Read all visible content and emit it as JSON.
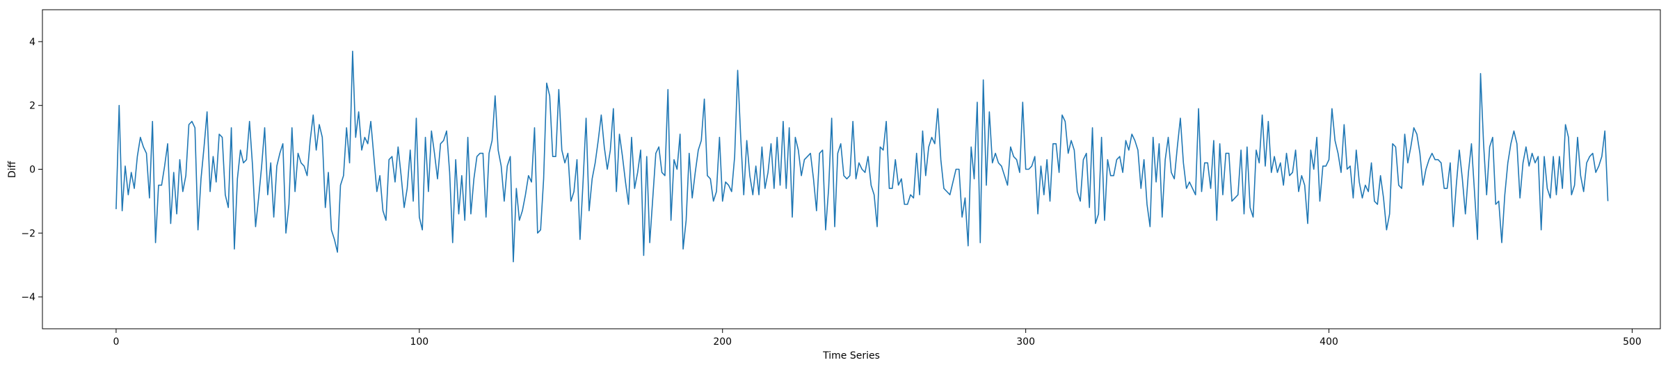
{
  "chart_data": {
    "type": "line",
    "title": "",
    "xlabel": "Time Series",
    "ylabel": "Diff",
    "xlim": [
      -24.3,
      509.3
    ],
    "ylim": [
      -5,
      5
    ],
    "xticks": [
      0,
      100,
      200,
      300,
      400,
      500
    ],
    "yticks": [
      -4,
      -2,
      0,
      2,
      4
    ],
    "grid": false,
    "legend": "none",
    "color": "#1f77b4",
    "series": [
      {
        "x_start": 0,
        "x_step": 1,
        "values": [
          -1.25,
          2.0,
          -1.3,
          0.1,
          -0.8,
          -0.1,
          -0.6,
          0.4,
          1.0,
          0.7,
          0.5,
          -0.9,
          1.5,
          -2.3,
          -0.5,
          -0.5,
          0.1,
          0.8,
          -1.7,
          -0.1,
          -1.4,
          0.3,
          -0.7,
          -0.2,
          1.4,
          1.5,
          1.3,
          -1.9,
          -0.3,
          0.7,
          1.8,
          -0.7,
          0.4,
          -0.4,
          1.1,
          1.0,
          -0.8,
          -1.2,
          1.3,
          -2.5,
          -0.3,
          0.6,
          0.2,
          0.3,
          1.5,
          0.1,
          -1.8,
          -0.9,
          0.1,
          1.3,
          -0.8,
          0.2,
          -1.5,
          0.1,
          0.5,
          0.8,
          -2.0,
          -1.1,
          1.3,
          -0.7,
          0.5,
          0.2,
          0.1,
          -0.2,
          0.9,
          1.7,
          0.6,
          1.4,
          1.0,
          -1.2,
          -0.1,
          -1.9,
          -2.2,
          -2.6,
          -0.5,
          -0.2,
          1.3,
          0.2,
          3.7,
          1.0,
          1.8,
          0.6,
          1.0,
          0.8,
          1.5,
          0.4,
          -0.7,
          -0.2,
          -1.3,
          -1.6,
          0.3,
          0.4,
          -0.4,
          0.7,
          -0.2,
          -1.2,
          -0.6,
          0.6,
          -1.0,
          1.6,
          -1.5,
          -1.9,
          1.0,
          -0.7,
          1.2,
          0.5,
          -0.3,
          0.8,
          0.9,
          1.2,
          -0.1,
          -2.3,
          0.3,
          -1.4,
          -0.2,
          -1.6,
          1.0,
          -1.4,
          -0.3,
          0.4,
          0.5,
          0.5,
          -1.5,
          0.5,
          0.9,
          2.3,
          0.6,
          0.1,
          -1.0,
          0.1,
          0.4,
          -2.9,
          -0.6,
          -1.6,
          -1.3,
          -0.8,
          -0.2,
          -0.4,
          1.3,
          -2.0,
          -1.9,
          -0.3,
          2.7,
          2.3,
          0.4,
          0.4,
          2.5,
          0.6,
          0.2,
          0.5,
          -1.0,
          -0.7,
          0.3,
          -2.2,
          -0.4,
          1.6,
          -1.3,
          -0.3,
          0.2,
          0.9,
          1.7,
          0.7,
          0.0,
          0.6,
          1.9,
          -0.7,
          1.1,
          0.4,
          -0.4,
          -1.1,
          1.0,
          -0.6,
          -0.1,
          0.6,
          -2.7,
          0.4,
          -2.3,
          -0.9,
          0.5,
          0.7,
          -0.1,
          -0.2,
          2.5,
          -1.6,
          0.3,
          0.0,
          1.1,
          -2.5,
          -1.6,
          0.5,
          -0.9,
          -0.1,
          0.6,
          0.9,
          2.2,
          -0.2,
          -0.3,
          -1.0,
          -0.7,
          1.0,
          -1.0,
          -0.4,
          -0.5,
          -0.7,
          0.4,
          3.1,
          1.0,
          -0.8,
          0.9,
          -0.2,
          -0.8,
          0.1,
          -0.8,
          0.7,
          -0.6,
          -0.1,
          0.8,
          -0.6,
          1.0,
          -0.5,
          1.5,
          -0.6,
          1.3,
          -1.5,
          1.0,
          0.6,
          -0.2,
          0.3,
          0.4,
          0.5,
          -0.3,
          -1.3,
          0.5,
          0.6,
          -1.9,
          -0.6,
          1.6,
          -1.8,
          0.5,
          0.8,
          -0.2,
          -0.3,
          -0.2,
          1.5,
          -0.3,
          0.2,
          0.0,
          -0.1,
          0.4,
          -0.5,
          -0.8,
          -1.8,
          0.7,
          0.6,
          1.5,
          -0.6,
          -0.6,
          0.3,
          -0.5,
          -0.3,
          -1.1,
          -1.1,
          -0.8,
          -0.9,
          0.5,
          -0.8,
          1.2,
          -0.2,
          0.7,
          1.0,
          0.8,
          1.9,
          0.3,
          -0.6,
          -0.7,
          -0.8,
          -0.4,
          0.0,
          0.0,
          -1.5,
          -0.9,
          -2.4,
          0.7,
          -0.3,
          2.1,
          -2.3,
          2.8,
          -0.5,
          1.8,
          0.2,
          0.5,
          0.2,
          0.1,
          -0.2,
          -0.5,
          0.7,
          0.4,
          0.3,
          -0.1,
          2.1,
          0.0,
          0.0,
          0.1,
          0.4,
          -1.4,
          0.1,
          -0.8,
          0.3,
          -1.0,
          0.8,
          0.8,
          -0.1,
          1.7,
          1.5,
          0.5,
          0.9,
          0.6,
          -0.7,
          -1.0,
          0.3,
          0.5,
          -1.2,
          1.3,
          -1.7,
          -1.4,
          1.0,
          -1.6,
          0.3,
          -0.2,
          -0.2,
          0.3,
          0.4,
          -0.1,
          0.9,
          0.6,
          1.1,
          0.9,
          0.6,
          -0.6,
          0.3,
          -1.1,
          -1.8,
          1.0,
          -0.4,
          0.8,
          -1.5,
          0.3,
          1.0,
          -0.1,
          -0.3,
          0.7,
          1.6,
          0.2,
          -0.6,
          -0.4,
          -0.6,
          -0.8,
          1.9,
          -0.7,
          0.2,
          0.2,
          -0.6,
          0.9,
          -1.6,
          0.8,
          -0.8,
          0.5,
          0.5,
          -1.0,
          -0.9,
          -0.8,
          0.6,
          -1.4,
          0.7,
          -1.2,
          -1.5,
          0.6,
          0.2,
          1.7,
          0.1,
          1.5,
          -0.1,
          0.4,
          -0.1,
          0.2,
          -0.5,
          0.5,
          -0.2,
          -0.1,
          0.6,
          -0.7,
          -0.2,
          -0.5,
          -1.7,
          0.6,
          0.0,
          1.0,
          -1.0,
          0.1,
          0.1,
          0.3,
          1.9,
          0.9,
          0.5,
          -0.1,
          1.4,
          0.0,
          0.1,
          -0.9,
          0.6,
          -0.4,
          -0.9,
          -0.5,
          -0.7,
          0.2,
          -1.0,
          -1.1,
          -0.2,
          -0.9,
          -1.9,
          -1.4,
          0.8,
          0.7,
          -0.5,
          -0.6,
          1.1,
          0.2,
          0.7,
          1.3,
          1.1,
          0.5,
          -0.5,
          0.0,
          0.3,
          0.5,
          0.3,
          0.3,
          0.2,
          -0.6,
          -0.6,
          0.2,
          -1.8,
          -0.5,
          0.6,
          -0.3,
          -1.4,
          -0.1,
          0.8,
          -0.7,
          -2.2,
          3.0,
          0.8,
          -0.8,
          0.7,
          1.0,
          -1.1,
          -1.0,
          -2.3,
          -0.8,
          0.2,
          0.8,
          1.2,
          0.8,
          -0.9,
          0.2,
          0.7,
          0.1,
          0.5,
          0.2,
          0.4,
          -1.9,
          0.4,
          -0.6,
          -0.9,
          0.4,
          -0.8,
          0.4,
          -0.6,
          1.4,
          1.0,
          -0.8,
          -0.5,
          1.0,
          -0.2,
          -0.7,
          0.2,
          0.4,
          0.5,
          -0.1,
          0.1,
          0.4,
          1.2,
          -1.0
        ]
      }
    ]
  }
}
